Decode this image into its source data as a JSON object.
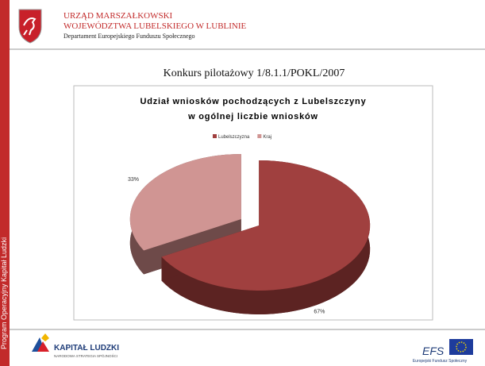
{
  "header": {
    "line1": "URZĄD MARSZAŁKOWSKI",
    "line2": "WOJEWÓDZTWA LUBELSKIEGO W LUBLINIE",
    "line3": "Departament Europejskiego Funduszu Społecznego"
  },
  "side_text": "Program Operacyjny Kapitał Ludzki",
  "subtitle": "Konkurs pilotażowy 1/8.1.1/POKL/2007",
  "chart_data": {
    "type": "pie",
    "title": [
      "Udział wniosków pochodzących z Lubelszczyny",
      "w ogólnej liczbie wniosków"
    ],
    "categories": [
      "Lubelszczyzna",
      "Kraj"
    ],
    "values": [
      67,
      33
    ],
    "value_labels": [
      "67%",
      "33%"
    ],
    "colors": [
      "#a0403f",
      "#d09593"
    ],
    "side_colors": [
      "#5c2322",
      "#6e4a49"
    ],
    "legend": "top"
  },
  "footer": {
    "left_title": "KAPITAŁ LUDZKI",
    "left_sub": "NARODOWA STRATEGIA SPÓJNOŚCI",
    "right_title": "EFS",
    "right_sub": "Europejski Fundusz Społeczny"
  }
}
